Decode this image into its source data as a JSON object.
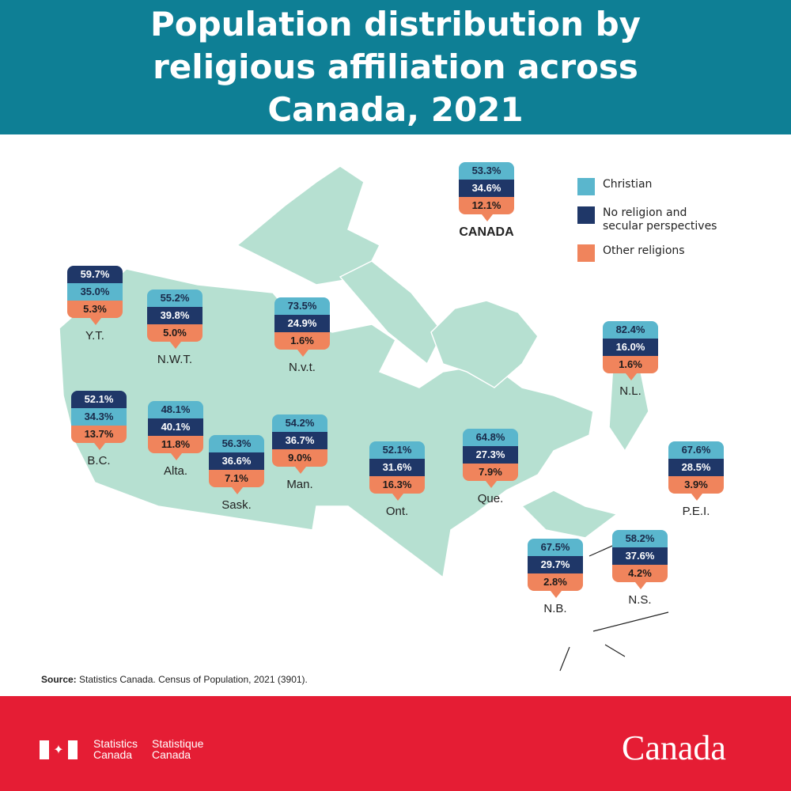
{
  "title": "Population distribution by religious affiliation across Canada, 2021",
  "colors": {
    "christian": "#5ab6cd",
    "no_religion": "#1f3768",
    "other": "#f0845c",
    "header": "#0e7f95",
    "footer": "#e51d34",
    "land": "#b6e0d1"
  },
  "legend": [
    {
      "key": "christian",
      "label": "Christian"
    },
    {
      "key": "no_religion",
      "label": "No religion and secular perspectives"
    },
    {
      "key": "other",
      "label": "Other religions"
    }
  ],
  "regions": [
    {
      "name": "CANADA",
      "rows": [
        {
          "key": "christian",
          "value": "53.3%"
        },
        {
          "key": "no_religion",
          "value": "34.6%"
        },
        {
          "key": "other",
          "value": "12.1%"
        }
      ]
    },
    {
      "name": "Y.T.",
      "rows": [
        {
          "key": "no_religion",
          "value": "59.7%"
        },
        {
          "key": "christian",
          "value": "35.0%"
        },
        {
          "key": "other",
          "value": "5.3%"
        }
      ]
    },
    {
      "name": "N.W.T.",
      "rows": [
        {
          "key": "christian",
          "value": "55.2%"
        },
        {
          "key": "no_religion",
          "value": "39.8%"
        },
        {
          "key": "other",
          "value": "5.0%"
        }
      ]
    },
    {
      "name": "N.v.t.",
      "rows": [
        {
          "key": "christian",
          "value": "73.5%"
        },
        {
          "key": "no_religion",
          "value": "24.9%"
        },
        {
          "key": "other",
          "value": "1.6%"
        }
      ]
    },
    {
      "name": "B.C.",
      "rows": [
        {
          "key": "no_religion",
          "value": "52.1%"
        },
        {
          "key": "christian",
          "value": "34.3%"
        },
        {
          "key": "other",
          "value": "13.7%"
        }
      ]
    },
    {
      "name": "Alta.",
      "rows": [
        {
          "key": "christian",
          "value": "48.1%"
        },
        {
          "key": "no_religion",
          "value": "40.1%"
        },
        {
          "key": "other",
          "value": "11.8%"
        }
      ]
    },
    {
      "name": "Sask.",
      "rows": [
        {
          "key": "christian",
          "value": "56.3%"
        },
        {
          "key": "no_religion",
          "value": "36.6%"
        },
        {
          "key": "other",
          "value": "7.1%"
        }
      ]
    },
    {
      "name": "Man.",
      "rows": [
        {
          "key": "christian",
          "value": "54.2%"
        },
        {
          "key": "no_religion",
          "value": "36.7%"
        },
        {
          "key": "other",
          "value": "9.0%"
        }
      ]
    },
    {
      "name": "Ont.",
      "rows": [
        {
          "key": "christian",
          "value": "52.1%"
        },
        {
          "key": "no_religion",
          "value": "31.6%"
        },
        {
          "key": "other",
          "value": "16.3%"
        }
      ]
    },
    {
      "name": "Que.",
      "rows": [
        {
          "key": "christian",
          "value": "64.8%"
        },
        {
          "key": "no_religion",
          "value": "27.3%"
        },
        {
          "key": "other",
          "value": "7.9%"
        }
      ]
    },
    {
      "name": "N.L.",
      "rows": [
        {
          "key": "christian",
          "value": "82.4%"
        },
        {
          "key": "no_religion",
          "value": "16.0%"
        },
        {
          "key": "other",
          "value": "1.6%"
        }
      ]
    },
    {
      "name": "P.E.I.",
      "rows": [
        {
          "key": "christian",
          "value": "67.6%"
        },
        {
          "key": "no_religion",
          "value": "28.5%"
        },
        {
          "key": "other",
          "value": "3.9%"
        }
      ]
    },
    {
      "name": "N.B.",
      "rows": [
        {
          "key": "christian",
          "value": "67.5%"
        },
        {
          "key": "no_religion",
          "value": "29.7%"
        },
        {
          "key": "other",
          "value": "2.8%"
        }
      ]
    },
    {
      "name": "N.S.",
      "rows": [
        {
          "key": "christian",
          "value": "58.2%"
        },
        {
          "key": "no_religion",
          "value": "37.6%"
        },
        {
          "key": "other",
          "value": "4.2%"
        }
      ]
    }
  ],
  "source": {
    "label": "Source:",
    "text": " Statistics Canada. Census of Population, 2021 (3901)."
  },
  "footer": {
    "agency_en_1": "Statistics",
    "agency_en_2": "Canada",
    "agency_fr_1": "Statistique",
    "agency_fr_2": "Canada",
    "wordmark": "Canada"
  }
}
